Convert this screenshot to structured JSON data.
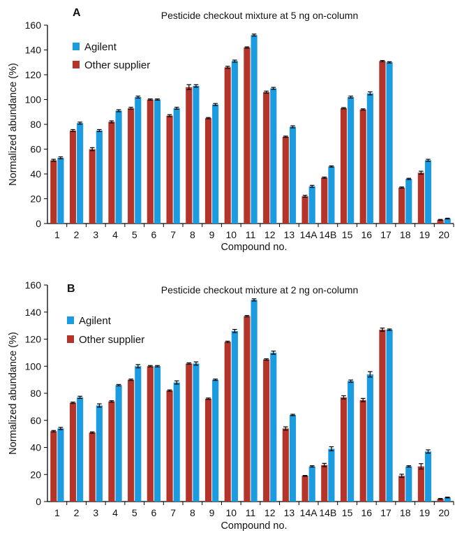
{
  "chart_data": [
    {
      "type": "bar",
      "panel_label": "A",
      "title": "Pesticide checkout mixture at 5 ng on-column",
      "xlabel": "Compound no.",
      "ylabel": "Normalized abundance (%)",
      "ylim": [
        0,
        160
      ],
      "yticks": [
        0,
        20,
        40,
        60,
        80,
        100,
        120,
        140,
        160
      ],
      "grid": false,
      "legend_position": "top-left",
      "categories": [
        "1",
        "2",
        "3",
        "4",
        "5",
        "6",
        "7",
        "8",
        "9",
        "10",
        "11",
        "12",
        "13",
        "14A",
        "14B",
        "15",
        "16",
        "17",
        "18",
        "19",
        "20"
      ],
      "series": [
        {
          "name": "Other supplier",
          "color": "#b5342a",
          "values": [
            51,
            75,
            60,
            82,
            93,
            100,
            87,
            110,
            85,
            126,
            142,
            106,
            70,
            22,
            37,
            93,
            92,
            131,
            29,
            41,
            3
          ],
          "errors": [
            0.8,
            0.8,
            1.2,
            0.8,
            0.8,
            0.5,
            0.8,
            2,
            0.5,
            0.8,
            0.5,
            0.8,
            0.5,
            0.8,
            0.5,
            0.5,
            0.5,
            0.5,
            0.5,
            1.2,
            0.3
          ]
        },
        {
          "name": "Agilent",
          "color": "#1b9be0",
          "values": [
            53,
            81,
            75,
            91,
            102,
            100,
            93,
            111,
            96,
            131,
            152,
            109,
            78,
            30,
            46,
            102,
            105,
            130,
            36,
            51,
            4
          ],
          "errors": [
            0.8,
            0.8,
            0.8,
            0.8,
            0.8,
            0.5,
            0.8,
            1,
            0.8,
            0.8,
            0.8,
            0.8,
            0.8,
            0.8,
            0.5,
            0.8,
            1.2,
            0.5,
            0.5,
            0.8,
            0.3
          ]
        }
      ]
    },
    {
      "type": "bar",
      "panel_label": "B",
      "title": "Pesticide checkout mixture at 2 ng on-column",
      "xlabel": "Compound no.",
      "ylabel": "Normalized abundance (%)",
      "ylim": [
        0,
        160
      ],
      "yticks": [
        0,
        20,
        40,
        60,
        80,
        100,
        120,
        140,
        160
      ],
      "grid": false,
      "legend_position": "top-left",
      "categories": [
        "1",
        "2",
        "3",
        "4",
        "5",
        "6",
        "7",
        "8",
        "9",
        "10",
        "11",
        "12",
        "13",
        "14A",
        "14B",
        "15",
        "16",
        "17",
        "18",
        "19",
        "20"
      ],
      "series": [
        {
          "name": "Other supplier",
          "color": "#b5342a",
          "values": [
            52,
            73,
            51,
            74,
            90,
            100,
            82,
            102,
            76,
            118,
            137,
            105,
            54,
            19,
            27,
            77,
            75,
            127,
            19,
            26,
            2
          ],
          "errors": [
            0.5,
            0.5,
            0.5,
            0.5,
            0.5,
            0.5,
            0.5,
            0.5,
            0.5,
            0.5,
            0.5,
            0.5,
            1.2,
            0.3,
            1.2,
            1.2,
            1.2,
            1.2,
            1.2,
            2,
            0.3
          ]
        },
        {
          "name": "Agilent",
          "color": "#1b9be0",
          "values": [
            54,
            77,
            71,
            86,
            100,
            100,
            88,
            102,
            90,
            126,
            149,
            110,
            64,
            26,
            39,
            89,
            94,
            127,
            26,
            37,
            3
          ],
          "errors": [
            0.8,
            0.8,
            1.2,
            0.5,
            1.2,
            0.5,
            1.2,
            1.2,
            0.5,
            1.2,
            0.8,
            1.2,
            0.5,
            0.5,
            1.5,
            0.8,
            2,
            0.5,
            0.5,
            1.2,
            0.3
          ]
        }
      ]
    }
  ]
}
